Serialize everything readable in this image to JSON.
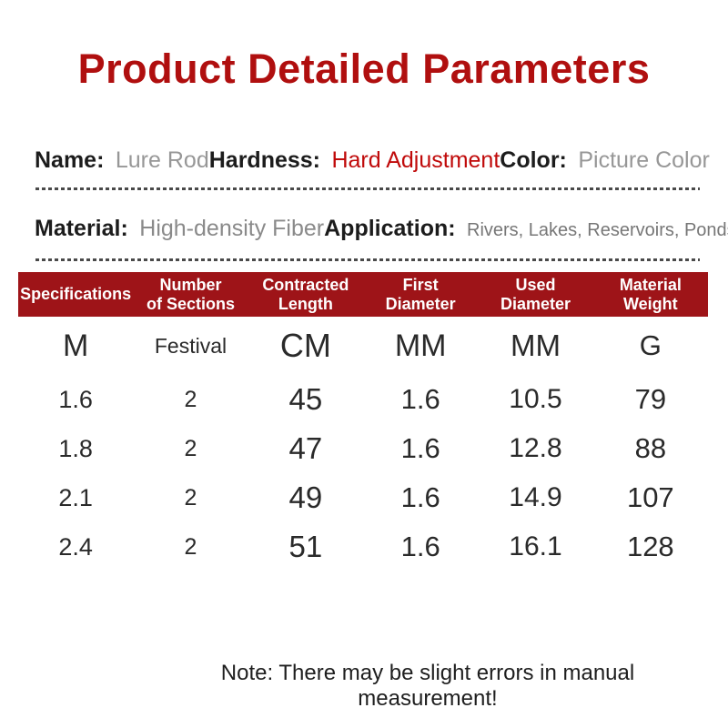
{
  "title": "Product Detailed Parameters",
  "info": {
    "name_label": "Name:",
    "name_value": "Lure Rod",
    "hardness_label": "Hardness:",
    "hardness_value": "Hard Adjustment",
    "color_label": "Color:",
    "color_value": "Picture Color",
    "material_label": "Material:",
    "material_value": "High-density Fiber",
    "application_label": "Application:",
    "application_value": "Rivers, Lakes, Reservoirs, Ponds, etc."
  },
  "table": {
    "headers": [
      "Specifications",
      "Number\nof Sections",
      "Contracted\nLength",
      "First\nDiameter",
      "Used\nDiameter",
      "Material\nWeight"
    ],
    "unit_row": [
      "M",
      "Festival",
      "CM",
      "MM",
      "MM",
      "G"
    ],
    "rows": [
      [
        "1.6",
        "2",
        "45",
        "1.6",
        "10.5",
        "79"
      ],
      [
        "1.8",
        "2",
        "47",
        "1.6",
        "12.8",
        "88"
      ],
      [
        "2.1",
        "2",
        "49",
        "1.6",
        "14.9",
        "107"
      ],
      [
        "2.4",
        "2",
        "51",
        "1.6",
        "16.1",
        "128"
      ]
    ]
  },
  "note": "Note: There may be slight errors in manual measurement!",
  "colors": {
    "title_red": "#b00f0f",
    "highlight_red": "#c00a0a",
    "header_bar_red": "#9e1418",
    "label_black": "#1c1c1c",
    "value_gray": "#979797",
    "dash_gray": "#4a4a4a"
  }
}
